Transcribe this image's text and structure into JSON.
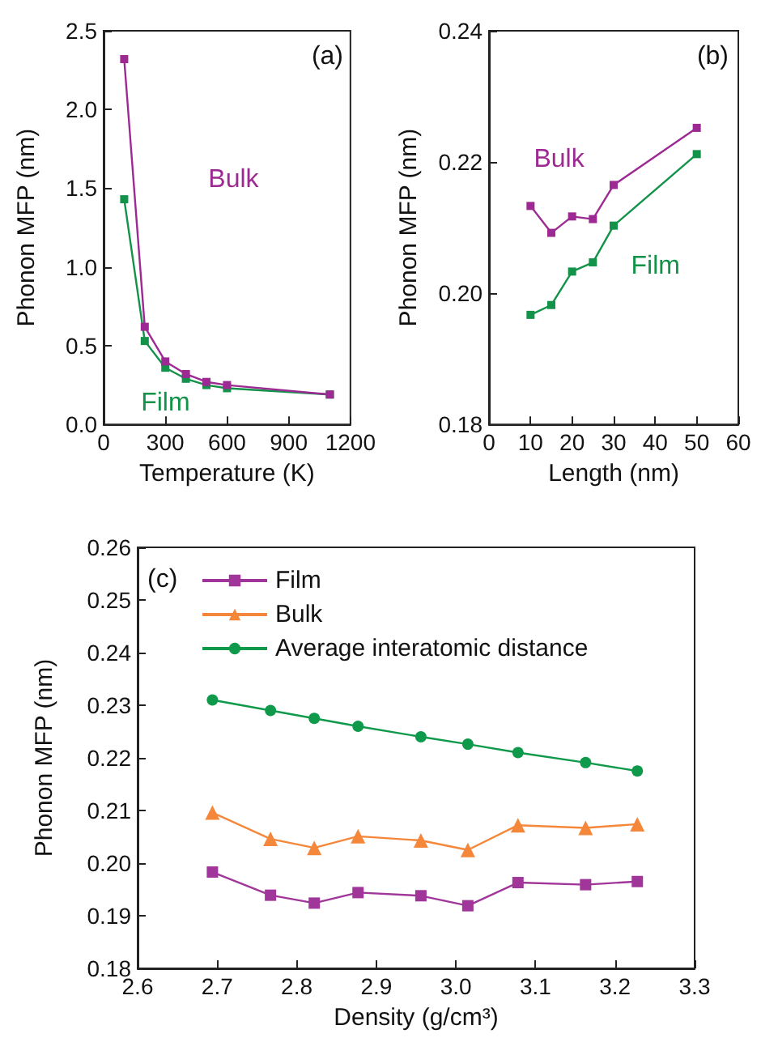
{
  "chart_data": [
    {
      "type": "line",
      "xlabel": "Temperature (K)",
      "ylabel": "Phonon MFP (nm)",
      "annotations": [
        "(a)"
      ],
      "x": [
        100,
        200,
        300,
        400,
        500,
        600,
        1100
      ],
      "series": [
        {
          "name": "Bulk",
          "color": "#9c2a92",
          "marker": "square",
          "values": [
            2.32,
            0.62,
            0.4,
            0.32,
            0.27,
            0.25,
            0.19
          ]
        },
        {
          "name": "Film",
          "color": "#13924a",
          "marker": "square",
          "values": [
            1.43,
            0.53,
            0.36,
            0.29,
            0.25,
            0.23,
            0.19
          ]
        }
      ],
      "xlim": [
        0,
        1200
      ],
      "xticks": [
        0,
        300,
        600,
        900,
        1200
      ],
      "ylim": [
        0,
        2.5
      ],
      "yticks": [
        {
          "value": 0,
          "label": "0.0"
        },
        0.5,
        {
          "value": 1,
          "label": "1.0"
        },
        1.5,
        {
          "value": 2,
          "label": "2.0"
        },
        2.5
      ],
      "legend": false,
      "line_style": "solid"
    },
    {
      "type": "line",
      "xlabel": "Length (nm)",
      "ylabel": "Phonon MFP (nm)",
      "annotations": [
        "(b)"
      ],
      "x": [
        10,
        15,
        20,
        25,
        30,
        50
      ],
      "series": [
        {
          "name": "Bulk",
          "color": "#9c2a92",
          "marker": "square",
          "values": [
            0.2133,
            0.2092,
            0.2117,
            0.2113,
            0.2165,
            0.2252
          ]
        },
        {
          "name": "Film",
          "color": "#13924a",
          "marker": "square",
          "values": [
            0.1967,
            0.1982,
            0.2033,
            0.2047,
            0.2103,
            0.2212
          ]
        }
      ],
      "xlim": [
        0,
        60
      ],
      "xticks": [
        0,
        10,
        20,
        30,
        40,
        50,
        60
      ],
      "ylim": [
        0.18,
        0.24
      ],
      "yticks": [
        0.18,
        {
          "value": 0.2,
          "label": "0.20"
        },
        0.22,
        0.24
      ],
      "legend": false,
      "line_style": "solid"
    },
    {
      "type": "line",
      "xlabel": "Density (g/cm³)",
      "ylabel": "Phonon MFP (nm)",
      "annotations": [
        "(c)"
      ],
      "x": [
        2.694,
        2.767,
        2.822,
        2.877,
        2.956,
        3.015,
        3.078,
        3.163,
        3.228
      ],
      "series": [
        {
          "name": "Film",
          "color": "#a0359a",
          "marker": "square",
          "values": [
            0.1983,
            0.1939,
            0.1924,
            0.1944,
            0.1938,
            0.1919,
            0.1963,
            0.1959,
            0.1965
          ]
        },
        {
          "name": "Bulk",
          "color": "#f5873a",
          "marker": "triangle",
          "values": [
            0.2096,
            0.2046,
            0.2029,
            0.2051,
            0.2043,
            0.2025,
            0.2072,
            0.2067,
            0.2074
          ]
        },
        {
          "name": "Average interatomic distance",
          "color": "#0e9a4a",
          "marker": "circle",
          "values": [
            0.231,
            0.229,
            0.2275,
            0.226,
            0.224,
            0.2226,
            0.221,
            0.2191,
            0.2175
          ]
        }
      ],
      "xlim": [
        2.6,
        3.3
      ],
      "xticks": [
        2.6,
        2.7,
        2.8,
        2.9,
        {
          "value": 3,
          "label": "3.0"
        },
        3.1,
        3.2,
        3.3
      ],
      "ylim": [
        0.18,
        0.26
      ],
      "yticks": [
        0.18,
        0.19,
        {
          "value": 0.2,
          "label": "0.20"
        },
        0.21,
        0.22,
        0.23,
        0.24,
        0.25,
        0.26
      ],
      "legend": "top left",
      "line_style": "solid"
    }
  ]
}
